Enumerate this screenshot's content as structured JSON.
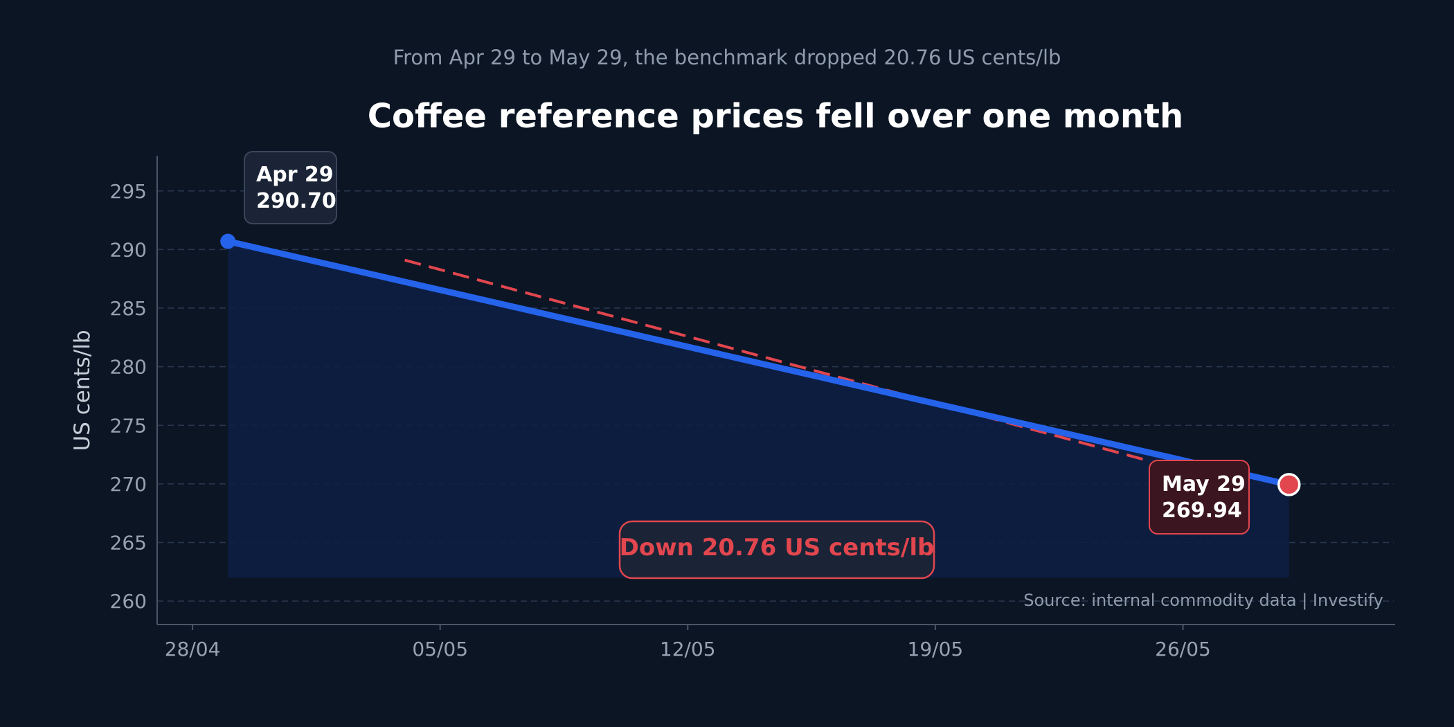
{
  "chart_data": {
    "type": "line",
    "title": "Coffee reference prices fell over one month",
    "subtitle": "From Apr 29 to May 29, the benchmark dropped 20.76 US cents/lb",
    "ylabel": "US cents/lb",
    "xlabel": "",
    "x_range": [
      "2024-04-27",
      "2024-06-01"
    ],
    "xlim": [
      "2024-04-27",
      "2024-06-01"
    ],
    "ylim": [
      258,
      298
    ],
    "area_baseline": 262,
    "y_ticks": [
      260,
      265,
      270,
      275,
      280,
      285,
      290,
      295
    ],
    "x_ticks": [
      {
        "date": "2024-04-28",
        "label": "28/04"
      },
      {
        "date": "2024-05-05",
        "label": "05/05"
      },
      {
        "date": "2024-05-12",
        "label": "12/05"
      },
      {
        "date": "2024-05-19",
        "label": "19/05"
      },
      {
        "date": "2024-05-26",
        "label": "26/05"
      }
    ],
    "series": [
      {
        "name": "",
        "color": "#2563eb",
        "points": [
          {
            "x": "2024-04-29",
            "y": 290.7
          },
          {
            "x": "2024-05-29",
            "y": 269.94
          }
        ]
      }
    ],
    "trend_line": {
      "color": "#e2464e",
      "points": [
        {
          "x": "2024-05-04",
          "y": 289.1
        },
        {
          "x": "2024-05-25",
          "y": 272.0
        }
      ]
    },
    "grid": true,
    "legend": "none",
    "annotations": {
      "start": {
        "date_label": "Apr 29",
        "value_label": "290.70"
      },
      "end": {
        "date_label": "May 29",
        "value_label": "269.94"
      },
      "change": "Down 20.76 US cents/lb"
    },
    "source": "Source: internal commodity data | Investify"
  }
}
